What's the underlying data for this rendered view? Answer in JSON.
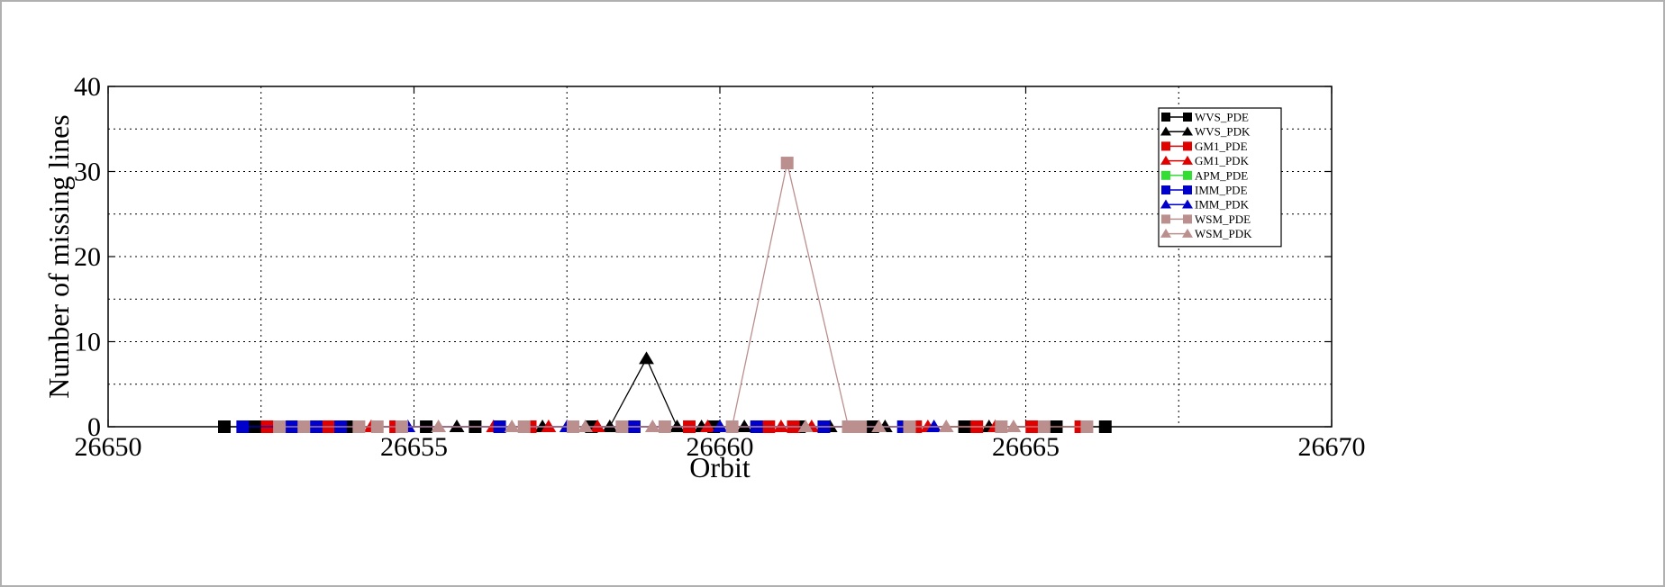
{
  "chart_data": {
    "type": "line",
    "title": "",
    "xlabel": "Orbit",
    "ylabel": "Number of missing lines",
    "xlim": [
      26650,
      26670
    ],
    "ylim": [
      0,
      40
    ],
    "x_ticks": [
      "26650",
      "26655",
      "26660",
      "26665",
      "26670"
    ],
    "y_ticks": [
      "0",
      "10",
      "20",
      "30",
      "40"
    ],
    "grid": true,
    "legend_position": "top-right",
    "series": [
      {
        "name": "WVS_PDE",
        "color": "#000000",
        "marker": "square",
        "x": [
          26651.9,
          26652.4,
          26654.0,
          26655.2,
          26656.0,
          26657.9,
          26659.9,
          26661.3,
          26662.5,
          26664.0,
          26665.5,
          26666.3
        ],
        "y": [
          0,
          0,
          0,
          0,
          0,
          0,
          0,
          0,
          0,
          0,
          0,
          0
        ]
      },
      {
        "name": "WVS_PDK",
        "color": "#000000",
        "marker": "triangle",
        "x": [
          26655.7,
          26657.1,
          26658.2,
          26658.8,
          26659.3,
          26659.7,
          26660.4,
          26661.8,
          26662.7,
          26664.4
        ],
        "y": [
          0,
          0,
          0,
          8,
          0,
          0,
          0,
          0,
          0,
          0
        ],
        "connect": [
          [
            2,
            3,
            4
          ]
        ]
      },
      {
        "name": "GM1_PDE",
        "color": "#e00000",
        "marker": "square",
        "x": [
          26652.6,
          26652.9,
          26653.6,
          26654.7,
          26656.9,
          26659.5,
          26660.8,
          26661.2,
          26663.2,
          26664.2,
          26665.1,
          26665.9
        ],
        "y": [
          0,
          0,
          0,
          0,
          0,
          0,
          0,
          0,
          0,
          0,
          0,
          0
        ]
      },
      {
        "name": "GM1_PDK",
        "color": "#e00000",
        "marker": "triangle",
        "x": [
          26654.3,
          26656.3,
          26657.2,
          26658.0,
          26659.8,
          26661.0,
          26661.5,
          26663.4,
          26664.5
        ],
        "y": [
          0,
          0,
          0,
          0,
          0,
          0,
          0,
          0,
          0
        ]
      },
      {
        "name": "APM_PDE",
        "color": "#33dd33",
        "marker": "square",
        "x": [
          26662.1
        ],
        "y": [
          0
        ]
      },
      {
        "name": "IMM_PDE",
        "color": "#0000cc",
        "marker": "square",
        "x": [
          26652.2,
          26653.0,
          26653.4,
          26653.8,
          26656.4,
          26658.6,
          26660.6,
          26661.7,
          26663.0
        ],
        "y": [
          0,
          0,
          0,
          0,
          0,
          0,
          0,
          0,
          0
        ]
      },
      {
        "name": "IMM_PDK",
        "color": "#0000cc",
        "marker": "triangle",
        "x": [
          26654.9,
          26657.5,
          26660.0,
          26663.5
        ],
        "y": [
          0,
          0,
          0,
          0
        ]
      },
      {
        "name": "WSM_PDE",
        "color": "#bc8f8f",
        "marker": "square",
        "x": [
          26652.8,
          26653.2,
          26654.1,
          26654.4,
          26654.8,
          26656.8,
          26657.6,
          26658.4,
          26659.1,
          26660.2,
          26661.1,
          26662.1,
          26662.3,
          26663.1,
          26664.6,
          26665.3,
          26666.0
        ],
        "y": [
          0,
          0,
          0,
          0,
          0,
          0,
          0,
          0,
          0,
          0,
          31,
          0,
          0,
          0,
          0,
          0,
          0
        ],
        "connect": [
          [
            9,
            10,
            11
          ]
        ]
      },
      {
        "name": "WSM_PDK",
        "color": "#bc8f8f",
        "marker": "triangle",
        "x": [
          26655.4,
          26656.6,
          26657.8,
          26658.9,
          26661.4,
          26662.6,
          26663.7,
          26664.8
        ],
        "y": [
          0,
          0,
          0,
          0,
          0,
          0,
          0,
          0
        ]
      }
    ]
  }
}
